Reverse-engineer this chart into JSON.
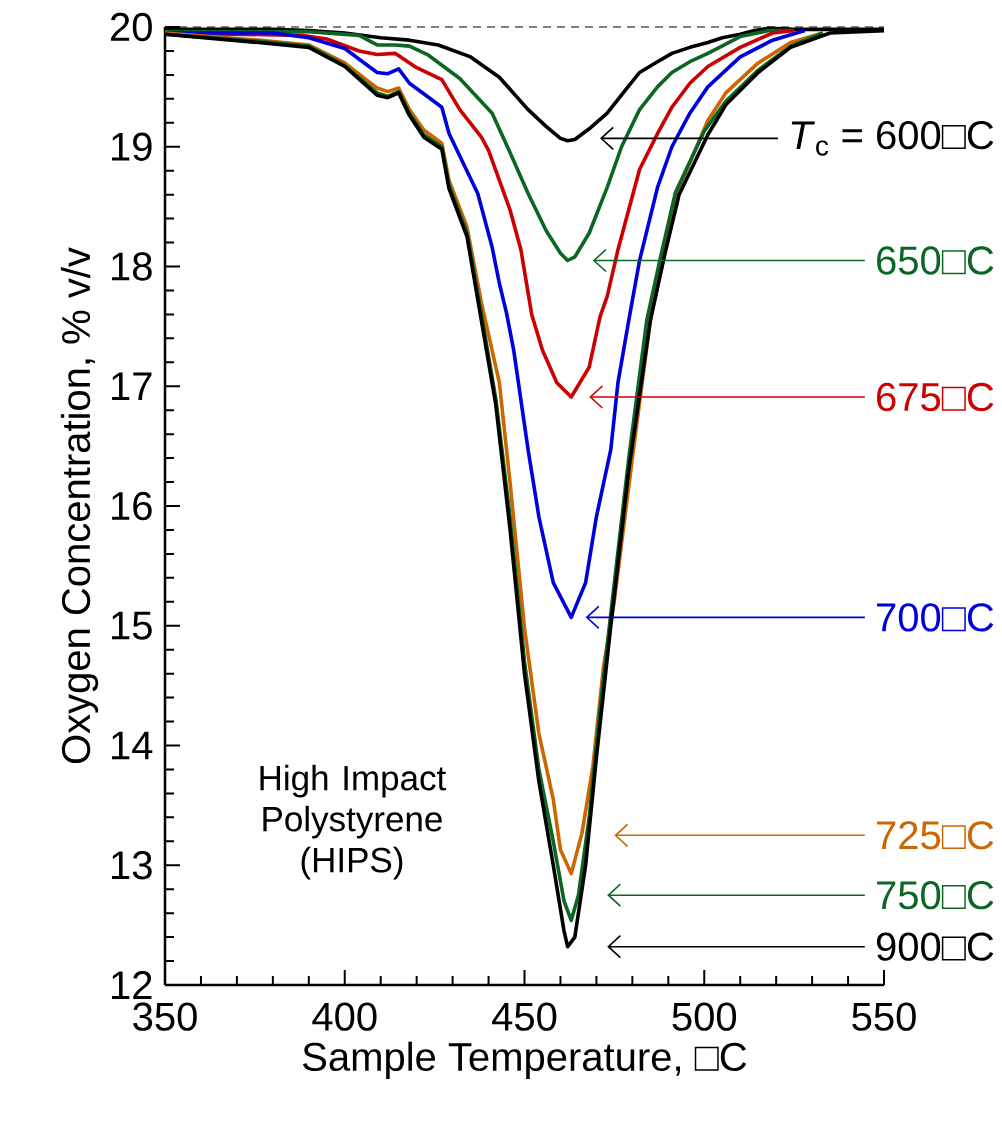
{
  "chart_data": {
    "type": "line",
    "xlabel": "Sample Temperature, □C",
    "ylabel": "Oxygen Concentration, % v/v",
    "xlim": [
      350,
      550
    ],
    "ylim": [
      12,
      20
    ],
    "xticks": [
      350,
      400,
      450,
      500,
      550
    ],
    "yticks": [
      12,
      13,
      14,
      15,
      16,
      17,
      18,
      19,
      20
    ],
    "marker": "none",
    "line_style": "solid",
    "ref_lines": [
      {
        "axis": "y",
        "value": 20,
        "line_style": "dashed",
        "color": "#000000"
      }
    ],
    "series": [
      {
        "color": "#000000",
        "x": [
          350,
          380,
          390,
          400,
          410,
          418,
          426,
          435,
          443,
          451,
          456,
          460,
          462,
          464,
          468,
          473,
          478,
          482,
          487,
          491,
          496,
          501,
          505,
          510,
          514,
          518,
          525,
          535,
          550
        ],
        "values": [
          19.98,
          19.98,
          19.97,
          19.95,
          19.91,
          19.89,
          19.85,
          19.75,
          19.58,
          19.31,
          19.17,
          19.07,
          19.05,
          19.06,
          19.15,
          19.28,
          19.47,
          19.62,
          19.71,
          19.78,
          19.83,
          19.87,
          19.91,
          19.94,
          19.97,
          19.99,
          19.98,
          19.98,
          19.98
        ]
      },
      {
        "color": "#0b6623",
        "x": [
          350,
          380,
          390,
          404,
          409,
          414,
          418,
          423,
          432,
          441,
          446,
          451,
          456,
          460,
          462,
          464,
          468,
          473,
          477,
          482,
          487,
          491,
          496,
          501,
          510,
          518,
          525
        ],
        "values": [
          19.96,
          19.96,
          19.96,
          19.93,
          19.85,
          19.85,
          19.84,
          19.77,
          19.57,
          19.28,
          18.95,
          18.61,
          18.3,
          18.11,
          18.05,
          18.08,
          18.28,
          18.66,
          19.0,
          19.31,
          19.5,
          19.62,
          19.71,
          19.78,
          19.92,
          19.97,
          19.97
        ]
      },
      {
        "color": "#cc0000",
        "x": [
          350,
          388,
          395,
          404,
          409,
          414,
          420,
          427,
          432,
          438,
          440,
          446,
          449,
          452,
          455,
          459,
          463,
          468,
          471,
          473,
          476,
          482,
          487,
          491,
          496,
          501,
          510,
          519,
          525
        ],
        "values": [
          19.95,
          19.93,
          19.9,
          19.8,
          19.77,
          19.78,
          19.66,
          19.56,
          19.31,
          19.08,
          18.97,
          18.47,
          18.14,
          17.6,
          17.3,
          17.03,
          16.91,
          17.16,
          17.58,
          17.75,
          18.14,
          18.81,
          19.11,
          19.33,
          19.53,
          19.67,
          19.83,
          19.95,
          19.97
        ]
      },
      {
        "color": "#0000dd",
        "x": [
          350,
          380,
          390,
          400,
          409,
          412,
          415,
          418,
          423,
          427,
          429,
          437,
          441,
          443,
          445,
          447,
          451,
          454,
          458,
          463,
          467,
          470,
          474,
          476,
          479,
          482,
          487,
          491,
          496,
          501,
          510,
          519,
          528
        ],
        "values": [
          19.95,
          19.95,
          19.91,
          19.82,
          19.62,
          19.61,
          19.65,
          19.53,
          19.42,
          19.33,
          19.11,
          18.61,
          18.16,
          17.86,
          17.61,
          17.3,
          16.47,
          15.91,
          15.36,
          15.07,
          15.36,
          15.91,
          16.47,
          17.03,
          17.55,
          18.05,
          18.66,
          19.0,
          19.28,
          19.5,
          19.75,
          19.89,
          19.97
        ]
      },
      {
        "color": "#cc6600",
        "x": [
          350,
          376,
          390,
          400,
          409,
          412,
          415,
          418,
          422,
          427,
          429,
          434,
          438,
          443,
          446,
          450,
          454,
          458,
          460,
          463,
          466,
          469,
          472,
          475,
          480,
          485,
          489,
          493,
          501,
          506,
          515,
          524,
          533
        ],
        "values": [
          19.95,
          19.89,
          19.85,
          19.7,
          19.49,
          19.46,
          19.49,
          19.31,
          19.14,
          19.03,
          18.72,
          18.33,
          17.7,
          17.03,
          16.19,
          14.98,
          14.1,
          13.55,
          13.13,
          12.93,
          13.27,
          13.82,
          14.66,
          15.21,
          16.4,
          17.55,
          18.11,
          18.66,
          19.22,
          19.45,
          19.7,
          19.87,
          19.95
        ]
      },
      {
        "color": "#0b6623",
        "x": [
          350,
          376,
          390,
          400,
          409,
          412,
          415,
          418,
          422,
          427,
          429,
          434,
          438,
          442,
          446,
          450,
          454,
          458,
          461,
          463,
          465,
          468,
          471,
          474,
          479,
          484,
          488,
          492,
          500,
          506,
          515,
          524,
          533
        ],
        "values": [
          19.94,
          19.88,
          19.84,
          19.68,
          19.45,
          19.42,
          19.46,
          19.28,
          19.1,
          19.0,
          18.68,
          18.28,
          17.6,
          16.9,
          15.9,
          14.7,
          13.8,
          13.2,
          12.7,
          12.54,
          12.75,
          13.4,
          14.3,
          15.1,
          16.4,
          17.55,
          18.1,
          18.62,
          19.13,
          19.38,
          19.64,
          19.84,
          19.95
        ]
      },
      {
        "color": "#000000",
        "x": [
          350,
          376,
          390,
          400,
          409,
          412,
          415,
          418,
          422,
          427,
          429,
          434,
          438,
          442,
          446,
          450,
          454,
          458,
          461,
          462,
          464,
          467,
          470,
          474,
          479,
          485,
          489,
          493,
          501,
          506,
          515,
          524,
          535,
          550
        ],
        "values": [
          19.94,
          19.87,
          19.83,
          19.67,
          19.43,
          19.41,
          19.45,
          19.26,
          19.08,
          18.98,
          18.65,
          18.25,
          17.55,
          16.85,
          15.8,
          14.6,
          13.7,
          13.0,
          12.45,
          12.32,
          12.4,
          13.0,
          13.9,
          15.0,
          16.3,
          17.55,
          18.1,
          18.6,
          19.1,
          19.35,
          19.62,
          19.83,
          19.95,
          19.97
        ]
      }
    ],
    "annotations": [
      "*T*$_{c}$ = 600□C",
      "650□C",
      "675□C",
      "700□C",
      "725□C",
      "750□C",
      "900□C",
      "High Impact Polystyrene (HIPS)"
    ]
  }
}
